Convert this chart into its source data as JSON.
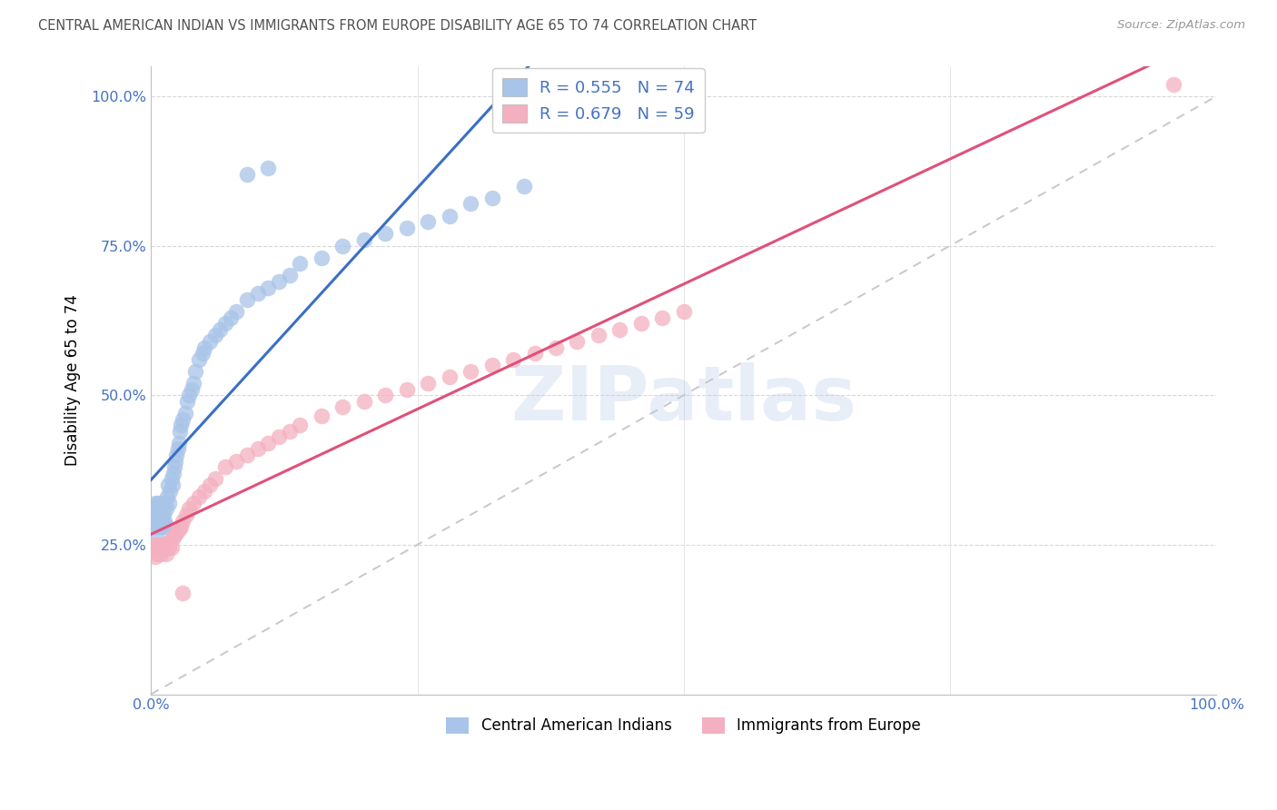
{
  "title": "CENTRAL AMERICAN INDIAN VS IMMIGRANTS FROM EUROPE DISABILITY AGE 65 TO 74 CORRELATION CHART",
  "source": "Source: ZipAtlas.com",
  "ylabel": "Disability Age 65 to 74",
  "watermark": "ZIPatlas",
  "blue_line_color": "#3a6fc4",
  "pink_line_color": "#e0507a",
  "blue_scatter_color": "#a8c4e8",
  "pink_scatter_color": "#f4b0c0",
  "diagonal_color": "#c8c8c8",
  "tick_color": "#4472c4",
  "footer_labels": [
    "Central American Indians",
    "Immigrants from Europe"
  ],
  "legend_blue_label": "R = 0.555   N = 74",
  "legend_pink_label": "R = 0.679   N = 59",
  "blue_x": [
    0.002,
    0.003,
    0.003,
    0.004,
    0.004,
    0.005,
    0.005,
    0.005,
    0.006,
    0.006,
    0.007,
    0.007,
    0.008,
    0.008,
    0.009,
    0.009,
    0.01,
    0.01,
    0.011,
    0.011,
    0.012,
    0.012,
    0.013,
    0.013,
    0.014,
    0.015,
    0.015,
    0.016,
    0.017,
    0.018,
    0.019,
    0.02,
    0.021,
    0.022,
    0.023,
    0.024,
    0.025,
    0.026,
    0.027,
    0.028,
    0.03,
    0.032,
    0.034,
    0.036,
    0.038,
    0.04,
    0.042,
    0.045,
    0.048,
    0.05,
    0.055,
    0.06,
    0.065,
    0.07,
    0.075,
    0.08,
    0.09,
    0.1,
    0.11,
    0.12,
    0.13,
    0.14,
    0.16,
    0.18,
    0.2,
    0.22,
    0.24,
    0.26,
    0.28,
    0.3,
    0.32,
    0.35,
    0.09,
    0.11
  ],
  "blue_y": [
    0.29,
    0.31,
    0.28,
    0.3,
    0.32,
    0.27,
    0.3,
    0.31,
    0.28,
    0.31,
    0.29,
    0.32,
    0.3,
    0.28,
    0.31,
    0.3,
    0.32,
    0.3,
    0.29,
    0.31,
    0.28,
    0.3,
    0.32,
    0.29,
    0.31,
    0.28,
    0.33,
    0.35,
    0.32,
    0.34,
    0.36,
    0.35,
    0.37,
    0.38,
    0.39,
    0.4,
    0.41,
    0.42,
    0.44,
    0.45,
    0.46,
    0.47,
    0.49,
    0.5,
    0.51,
    0.52,
    0.54,
    0.56,
    0.57,
    0.58,
    0.59,
    0.6,
    0.61,
    0.62,
    0.63,
    0.64,
    0.66,
    0.67,
    0.68,
    0.69,
    0.7,
    0.72,
    0.73,
    0.75,
    0.76,
    0.77,
    0.78,
    0.79,
    0.8,
    0.82,
    0.83,
    0.85,
    0.87,
    0.88
  ],
  "pink_x": [
    0.002,
    0.003,
    0.004,
    0.005,
    0.006,
    0.007,
    0.008,
    0.009,
    0.01,
    0.011,
    0.012,
    0.013,
    0.014,
    0.015,
    0.016,
    0.017,
    0.018,
    0.019,
    0.02,
    0.022,
    0.024,
    0.026,
    0.028,
    0.03,
    0.033,
    0.036,
    0.04,
    0.045,
    0.05,
    0.055,
    0.06,
    0.07,
    0.08,
    0.09,
    0.1,
    0.11,
    0.12,
    0.13,
    0.14,
    0.16,
    0.18,
    0.2,
    0.22,
    0.24,
    0.26,
    0.28,
    0.3,
    0.32,
    0.34,
    0.36,
    0.38,
    0.4,
    0.42,
    0.44,
    0.46,
    0.48,
    0.5,
    0.96,
    0.03
  ],
  "pink_y": [
    0.25,
    0.24,
    0.23,
    0.245,
    0.235,
    0.25,
    0.24,
    0.235,
    0.25,
    0.24,
    0.25,
    0.245,
    0.235,
    0.245,
    0.255,
    0.245,
    0.255,
    0.245,
    0.26,
    0.265,
    0.27,
    0.275,
    0.28,
    0.29,
    0.3,
    0.31,
    0.32,
    0.33,
    0.34,
    0.35,
    0.36,
    0.38,
    0.39,
    0.4,
    0.41,
    0.42,
    0.43,
    0.44,
    0.45,
    0.465,
    0.48,
    0.49,
    0.5,
    0.51,
    0.52,
    0.53,
    0.54,
    0.55,
    0.56,
    0.57,
    0.58,
    0.59,
    0.6,
    0.61,
    0.62,
    0.63,
    0.64,
    1.02,
    0.17
  ]
}
